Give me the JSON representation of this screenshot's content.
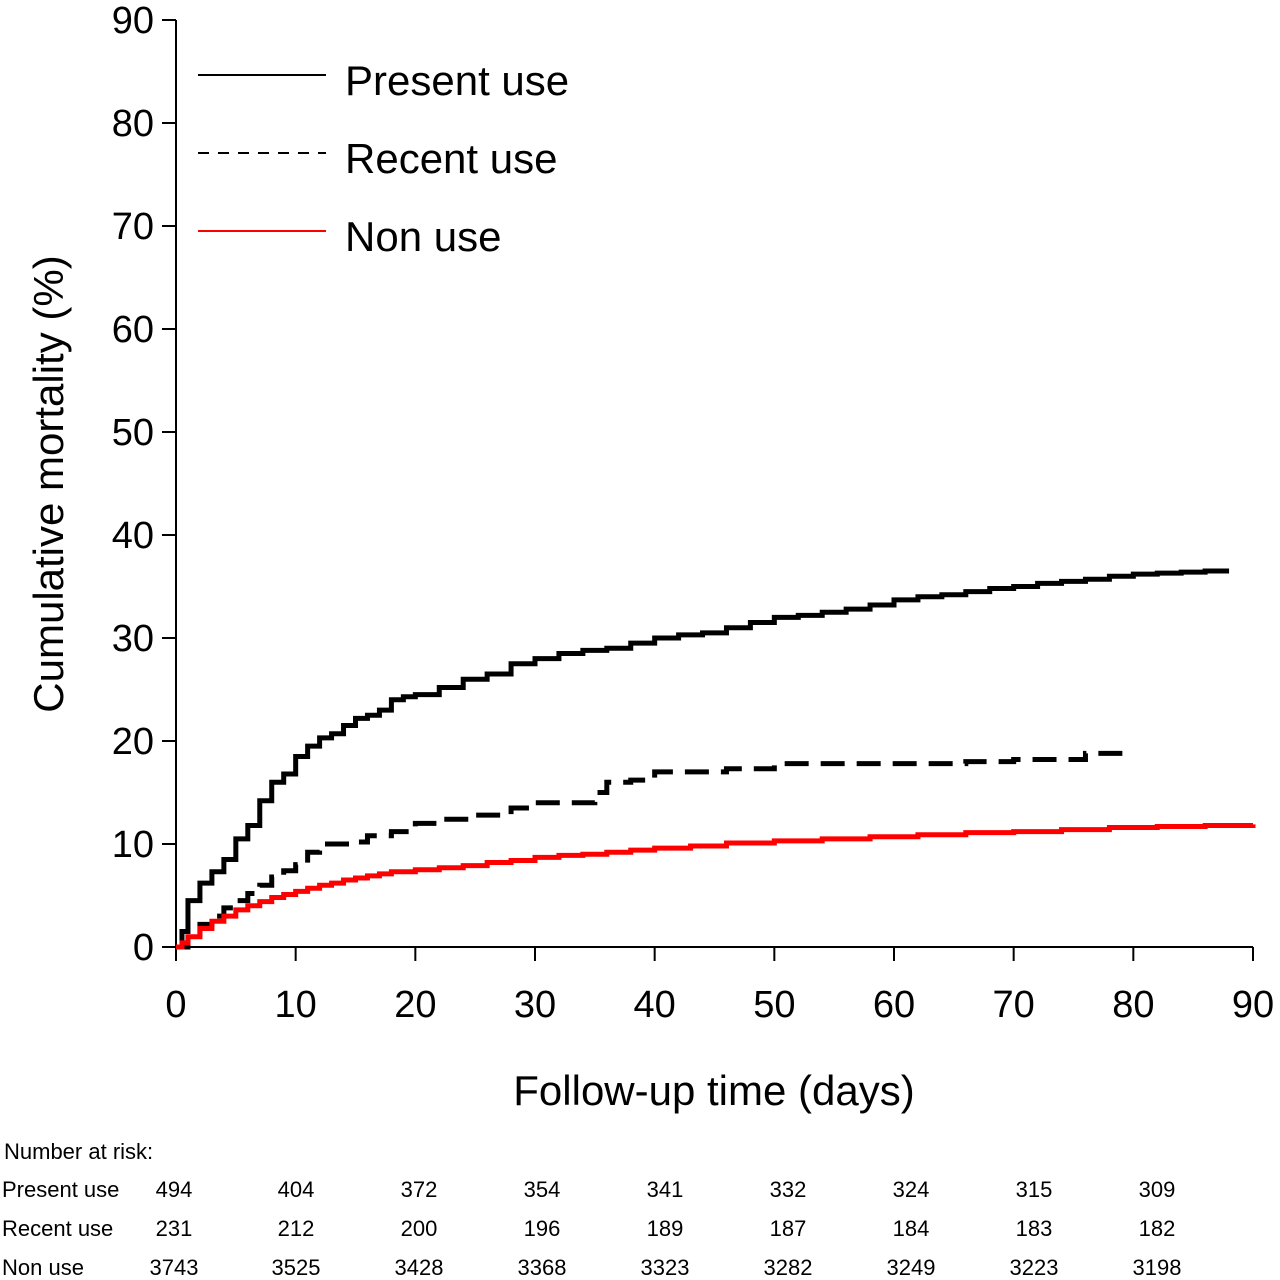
{
  "chart_data": {
    "type": "line",
    "step": true,
    "title": "",
    "xlabel": "Follow-up time (days)",
    "ylabel": "Cumulative mortality (%)",
    "xlim": [
      0,
      90
    ],
    "ylim": [
      0,
      90
    ],
    "xticks": [
      0,
      10,
      20,
      30,
      40,
      50,
      60,
      70,
      80,
      90
    ],
    "yticks": [
      0,
      10,
      20,
      30,
      40,
      50,
      60,
      70,
      80,
      90
    ],
    "grid": false,
    "legend_position": "top-left",
    "series": [
      {
        "name": "Present use",
        "color": "#000000",
        "dash": "solid",
        "x": [
          0,
          0.5,
          1,
          2,
          3,
          4,
          5,
          6,
          7,
          8,
          9,
          10,
          11,
          12,
          13,
          14,
          15,
          16,
          17,
          18,
          19,
          20,
          22,
          24,
          26,
          28,
          30,
          32,
          34,
          36,
          38,
          40,
          42,
          44,
          46,
          48,
          50,
          52,
          54,
          56,
          58,
          60,
          62,
          64,
          66,
          68,
          70,
          72,
          74,
          76,
          78,
          80,
          82,
          84,
          86,
          88
        ],
        "y": [
          0,
          1.5,
          4.5,
          6.2,
          7.3,
          8.5,
          10.5,
          11.8,
          14.2,
          16,
          16.8,
          18.5,
          19.5,
          20.3,
          20.7,
          21.5,
          22.2,
          22.5,
          23,
          24,
          24.3,
          24.5,
          25.2,
          26,
          26.5,
          27.5,
          28,
          28.5,
          28.8,
          29,
          29.5,
          30,
          30.3,
          30.5,
          31,
          31.5,
          32,
          32.2,
          32.5,
          32.8,
          33.2,
          33.7,
          34,
          34.2,
          34.5,
          34.8,
          35,
          35.3,
          35.5,
          35.7,
          36,
          36.2,
          36.3,
          36.4,
          36.5,
          36.5
        ]
      },
      {
        "name": "Recent use",
        "color": "#000000",
        "dash": "dashed",
        "x": [
          0,
          1,
          2,
          3,
          4,
          5,
          6,
          7,
          8,
          9,
          10,
          11,
          12,
          13,
          15,
          16,
          18,
          20,
          22,
          25,
          28,
          30,
          33,
          35,
          36,
          38,
          40,
          43,
          46,
          50,
          53,
          58,
          62,
          66,
          70,
          74,
          76,
          80
        ],
        "y": [
          0,
          1.2,
          2.2,
          3,
          3.8,
          4.5,
          5.2,
          6,
          6.8,
          7.4,
          8,
          9.2,
          10,
          10,
          10.2,
          10.8,
          11.2,
          12,
          12.4,
          12.8,
          13.5,
          14,
          14,
          15,
          16,
          16.2,
          17,
          17,
          17.3,
          17.8,
          17.8,
          17.8,
          17.8,
          18,
          18.2,
          18.2,
          18.8,
          18.8
        ]
      },
      {
        "name": "Non use",
        "color": "#ff0000",
        "dash": "solid",
        "x": [
          0,
          0.5,
          1,
          2,
          3,
          4,
          5,
          6,
          7,
          8,
          9,
          10,
          11,
          12,
          13,
          14,
          15,
          16,
          17,
          18,
          20,
          22,
          24,
          26,
          28,
          30,
          32,
          34,
          36,
          38,
          40,
          43,
          46,
          50,
          54,
          58,
          62,
          66,
          70,
          74,
          78,
          82,
          86,
          90
        ],
        "y": [
          0,
          0.4,
          1,
          1.8,
          2.5,
          3,
          3.6,
          4,
          4.4,
          4.8,
          5.1,
          5.4,
          5.7,
          6,
          6.2,
          6.5,
          6.7,
          6.9,
          7.1,
          7.3,
          7.5,
          7.7,
          7.9,
          8.2,
          8.4,
          8.7,
          8.9,
          9,
          9.2,
          9.4,
          9.6,
          9.8,
          10.1,
          10.3,
          10.5,
          10.7,
          10.9,
          11.1,
          11.2,
          11.4,
          11.6,
          11.7,
          11.8,
          11.9
        ]
      }
    ]
  },
  "risk_table": {
    "title": "Number at risk:",
    "rows": [
      {
        "label": "Present use",
        "values": [
          "494",
          "404",
          "372",
          "354",
          "341",
          "332",
          "324",
          "315",
          "309"
        ]
      },
      {
        "label": "Recent use",
        "values": [
          "231",
          "212",
          "200",
          "196",
          "189",
          "187",
          "184",
          "183",
          "182"
        ]
      },
      {
        "label": "Non use",
        "values": [
          "3743",
          "3525",
          "3428",
          "3368",
          "3323",
          "3282",
          "3249",
          "3223",
          "3198"
        ]
      }
    ]
  }
}
